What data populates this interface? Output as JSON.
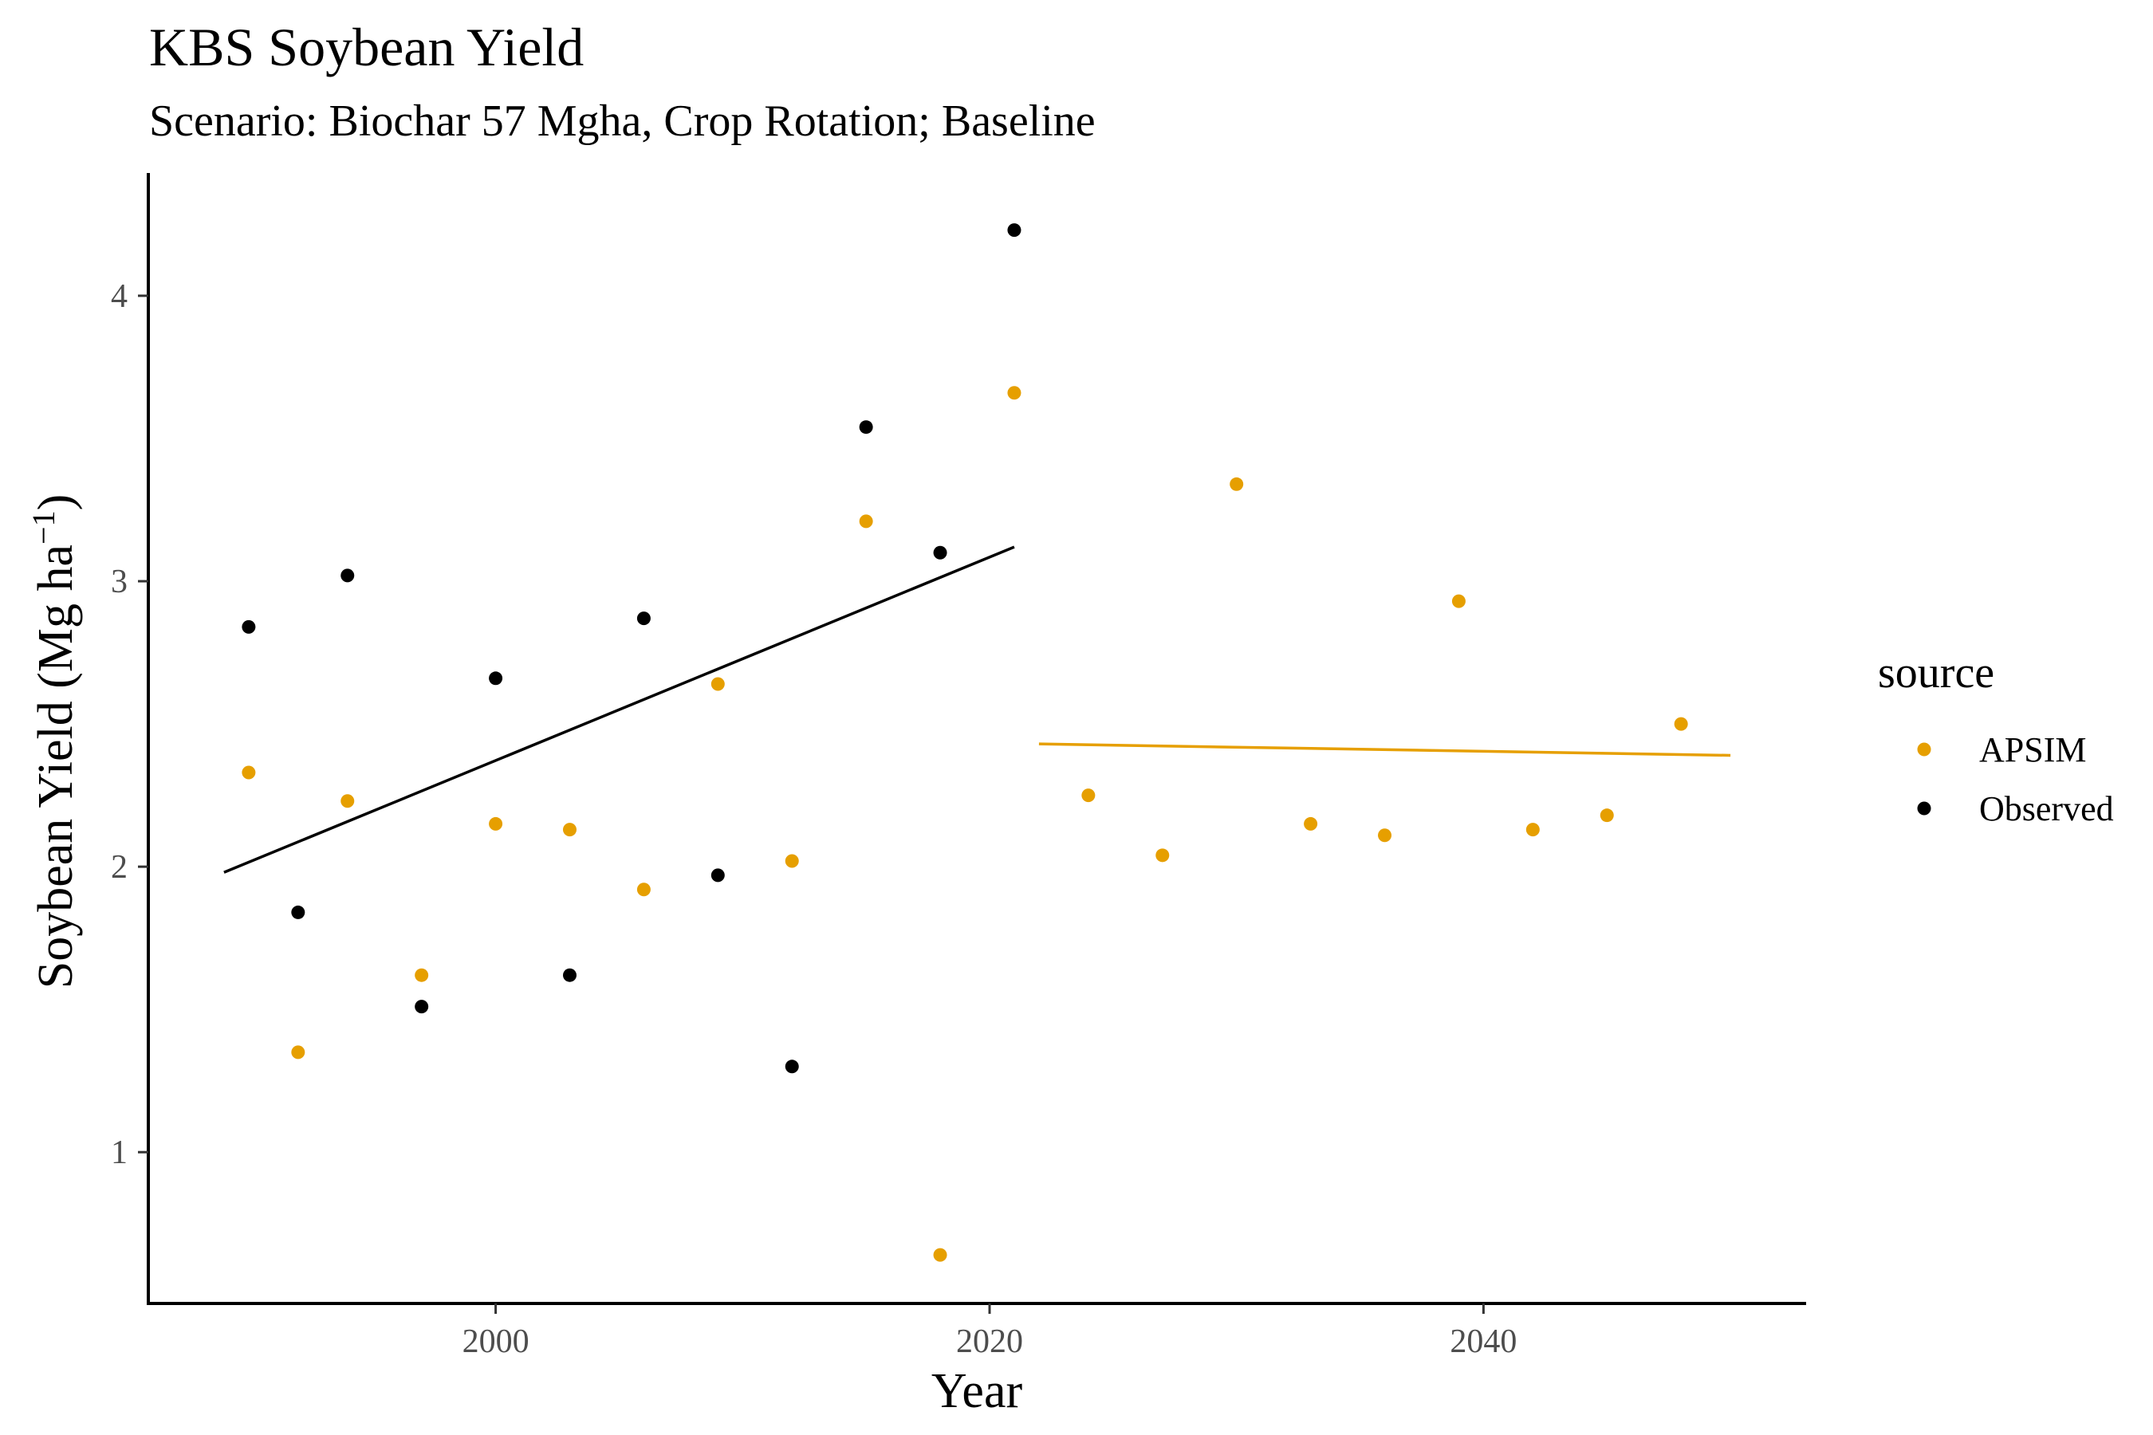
{
  "chart_data": {
    "type": "scatter",
    "title": "KBS Soybean Yield",
    "subtitle": "Scenario: Biochar 57 Mgha, Crop Rotation; Baseline",
    "xlabel": "Year",
    "ylabel_main": "Soybean Yield (Mg ha",
    "ylabel_sup": "−1",
    "ylabel_close": ")",
    "xlim": [
      1986,
      2053
    ],
    "ylim": [
      0.47,
      4.43
    ],
    "x_ticks": [
      2000,
      2020,
      2040
    ],
    "y_ticks": [
      1,
      2,
      3,
      4
    ],
    "grid": false,
    "legend": {
      "title": "source",
      "position": "right"
    },
    "series": [
      {
        "name": "APSIM",
        "color": "#E69F00",
        "points": [
          [
            1990,
            2.33
          ],
          [
            1992,
            1.35
          ],
          [
            1994,
            2.23
          ],
          [
            1997,
            1.62
          ],
          [
            2000,
            2.15
          ],
          [
            2003,
            2.13
          ],
          [
            2006,
            1.92
          ],
          [
            2009,
            2.64
          ],
          [
            2012,
            2.02
          ],
          [
            2015,
            3.21
          ],
          [
            2018,
            0.64
          ],
          [
            2021,
            3.66
          ],
          [
            2024,
            2.25
          ],
          [
            2027,
            2.04
          ],
          [
            2030,
            3.34
          ],
          [
            2033,
            2.15
          ],
          [
            2036,
            2.11
          ],
          [
            2039,
            2.93
          ],
          [
            2042,
            2.13
          ],
          [
            2045,
            2.18
          ],
          [
            2048,
            2.5
          ]
        ],
        "trend": {
          "x": [
            2022,
            2050
          ],
          "y": [
            2.43,
            2.39
          ]
        }
      },
      {
        "name": "Observed",
        "color": "#000000",
        "points": [
          [
            1990,
            2.84
          ],
          [
            1992,
            1.84
          ],
          [
            1994,
            3.02
          ],
          [
            1997,
            1.51
          ],
          [
            2000,
            2.66
          ],
          [
            2003,
            1.62
          ],
          [
            2006,
            2.87
          ],
          [
            2009,
            1.97
          ],
          [
            2012,
            1.3
          ],
          [
            2015,
            3.54
          ],
          [
            2018,
            3.1
          ],
          [
            2021,
            4.23
          ]
        ],
        "trend": {
          "x": [
            1989,
            2021
          ],
          "y": [
            1.98,
            3.12
          ]
        }
      }
    ]
  }
}
